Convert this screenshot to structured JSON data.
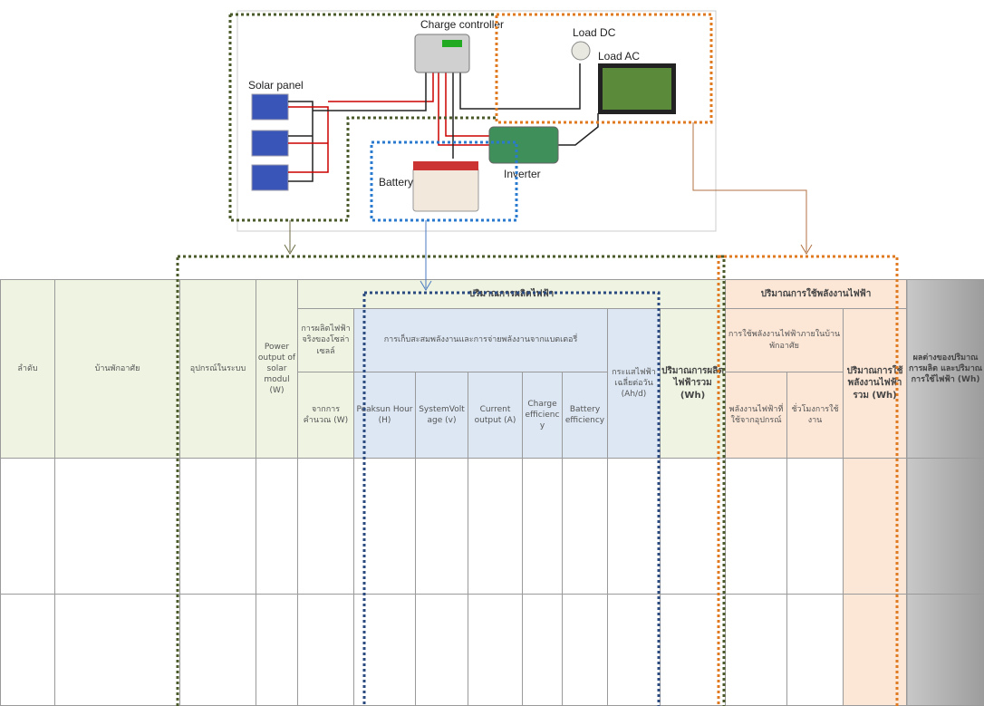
{
  "diagram": {
    "labels": {
      "charge_controller": "Charge controller",
      "load_dc": "Load DC",
      "load_ac": "Load AC",
      "solar_panel": "Solar panel",
      "battery": "Battery",
      "inverter": "Inverter"
    }
  },
  "table": {
    "header": {
      "no": "ลำดับ",
      "house": "บ้านพักอาศัย",
      "equipment": "อุปกรณ์ในระบบ",
      "power_output": "Power output of solar modul (W)",
      "production_group": "ปริมาณการผลิตไฟฟ้า",
      "actual_production": "การผลิตไฟฟ้าจริงของโซล่าเซลล์",
      "storage": "การเก็บสะสมพลังงานและการจ่ายพลังงานจากแบตเตอรี่",
      "avg_current": "กระแสไฟฟ้าเฉลี่ยต่อวัน (Ah/d)",
      "total_production": "ปริมาณการผลิตไฟฟ้ารวม (Wh)",
      "calculated": "จากการคำนวณ (W)",
      "peaksun": "Peaksun Hour (H)",
      "system_voltage": "SystemVoltage (v)",
      "current_output": "Current output (A)",
      "charge_eff": "Charge efficiency",
      "battery_eff": "Battery efficiency",
      "consumption_group": "ปริมาณการใช้พลังงานไฟฟ้า",
      "household_use": "การใช้พลังงานไฟฟ้าภายในบ้านพักอาศัย",
      "total_consumption": "ปริมาณการใช้พลังงานไฟฟ้ารวม (Wh)",
      "device_energy": "พลังงานไฟฟ้าที่ใช้จากอุปกรณ์",
      "usage_hours": "ชั่วโมงการใช้งาน",
      "difference": "ผลต่างของปริมาณการผลิต และปริมาณการใช้ไฟฟ้า (Wh)"
    }
  }
}
